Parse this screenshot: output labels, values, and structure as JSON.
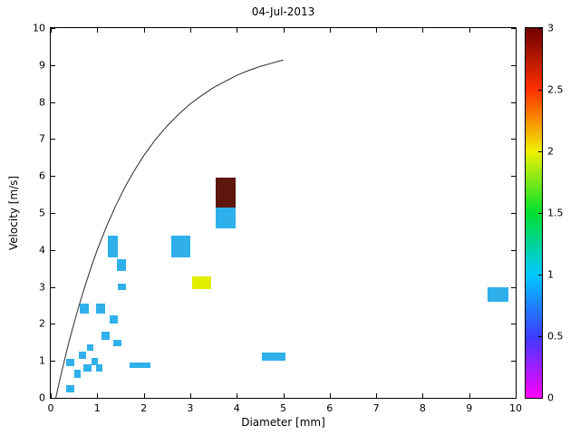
{
  "chart_data": {
    "type": "heatmap",
    "title": "04-Jul-2013",
    "xlabel": "Diameter [mm]",
    "ylabel": "Velocity [m/s]",
    "xlim": [
      0,
      10
    ],
    "ylim": [
      0,
      10
    ],
    "xticks": [
      0,
      1,
      2,
      3,
      4,
      5,
      6,
      7,
      8,
      9,
      10
    ],
    "yticks": [
      0,
      1,
      2,
      3,
      4,
      5,
      6,
      7,
      8,
      9,
      10
    ],
    "grid": false,
    "legend": "none",
    "curve": {
      "label": "terminal-velocity-curve",
      "color": "#2b2b2b",
      "points": [
        [
          0.11,
          0.0
        ],
        [
          0.2,
          0.52
        ],
        [
          0.3,
          1.05
        ],
        [
          0.4,
          1.55
        ],
        [
          0.5,
          2.02
        ],
        [
          0.6,
          2.46
        ],
        [
          0.75,
          3.08
        ],
        [
          0.9,
          3.65
        ],
        [
          1.0,
          4.0
        ],
        [
          1.2,
          4.64
        ],
        [
          1.4,
          5.2
        ],
        [
          1.6,
          5.71
        ],
        [
          1.8,
          6.15
        ],
        [
          2.0,
          6.55
        ],
        [
          2.25,
          6.98
        ],
        [
          2.5,
          7.35
        ],
        [
          2.75,
          7.67
        ],
        [
          3.0,
          7.95
        ],
        [
          3.25,
          8.18
        ],
        [
          3.5,
          8.39
        ],
        [
          3.75,
          8.56
        ],
        [
          4.0,
          8.72
        ],
        [
          4.25,
          8.85
        ],
        [
          4.5,
          8.96
        ],
        [
          4.75,
          9.05
        ],
        [
          5.0,
          9.14
        ]
      ]
    },
    "value_colors": {
      "1": "#2fb0ea",
      "2": "#e2ee00",
      "3": "#5d170d"
    },
    "cells": [
      {
        "d0": 0.33,
        "d1": 0.5,
        "v0": 0.15,
        "v1": 0.35,
        "value": 1
      },
      {
        "d0": 0.33,
        "d1": 0.5,
        "v0": 0.85,
        "v1": 1.05,
        "value": 1
      },
      {
        "d0": 0.5,
        "d1": 0.65,
        "v0": 0.55,
        "v1": 0.75,
        "value": 1
      },
      {
        "d0": 0.6,
        "d1": 0.77,
        "v0": 1.05,
        "v1": 1.25,
        "value": 1
      },
      {
        "d0": 0.62,
        "d1": 0.81,
        "v0": 2.28,
        "v1": 2.55,
        "value": 1
      },
      {
        "d0": 0.7,
        "d1": 0.87,
        "v0": 0.7,
        "v1": 0.9,
        "value": 1
      },
      {
        "d0": 0.77,
        "d1": 0.91,
        "v0": 1.28,
        "v1": 1.45,
        "value": 1
      },
      {
        "d0": 0.87,
        "d1": 1.02,
        "v0": 0.88,
        "v1": 1.08,
        "value": 1
      },
      {
        "d0": 0.98,
        "d1": 1.12,
        "v0": 0.72,
        "v1": 0.9,
        "value": 1
      },
      {
        "d0": 0.98,
        "d1": 1.17,
        "v0": 2.28,
        "v1": 2.55,
        "value": 1
      },
      {
        "d0": 1.1,
        "d1": 1.26,
        "v0": 1.58,
        "v1": 1.78,
        "value": 1
      },
      {
        "d0": 1.22,
        "d1": 1.45,
        "v0": 3.8,
        "v1": 4.38,
        "value": 1
      },
      {
        "d0": 1.26,
        "d1": 1.45,
        "v0": 2.0,
        "v1": 2.22,
        "value": 1
      },
      {
        "d0": 1.35,
        "d1": 1.52,
        "v0": 1.4,
        "v1": 1.58,
        "value": 1
      },
      {
        "d0": 1.42,
        "d1": 1.62,
        "v0": 3.42,
        "v1": 3.75,
        "value": 1
      },
      {
        "d0": 1.45,
        "d1": 1.62,
        "v0": 2.92,
        "v1": 3.1,
        "value": 1
      },
      {
        "d0": 1.7,
        "d1": 2.15,
        "v0": 0.8,
        "v1": 0.95,
        "value": 1
      },
      {
        "d0": 2.6,
        "d1": 3.0,
        "v0": 3.8,
        "v1": 4.38,
        "value": 1
      },
      {
        "d0": 3.05,
        "d1": 3.45,
        "v0": 2.95,
        "v1": 3.28,
        "value": 2
      },
      {
        "d0": 3.55,
        "d1": 3.97,
        "v0": 5.15,
        "v1": 5.95,
        "value": 3
      },
      {
        "d0": 3.55,
        "d1": 3.97,
        "v0": 4.58,
        "v1": 5.15,
        "value": 1
      },
      {
        "d0": 4.55,
        "d1": 5.05,
        "v0": 1.0,
        "v1": 1.22,
        "value": 1
      },
      {
        "d0": 9.4,
        "d1": 9.85,
        "v0": 2.6,
        "v1": 3.0,
        "value": 1
      }
    ],
    "colorbar": {
      "min": 0,
      "max": 3,
      "ticks": [
        0,
        0.5,
        1,
        1.5,
        2,
        2.5,
        3
      ],
      "gradient_bottom_to_top": [
        "#ff00ff",
        "#3c3cff",
        "#00c8ff",
        "#00e030",
        "#f0f000",
        "#ff3000",
        "#700000"
      ]
    }
  }
}
